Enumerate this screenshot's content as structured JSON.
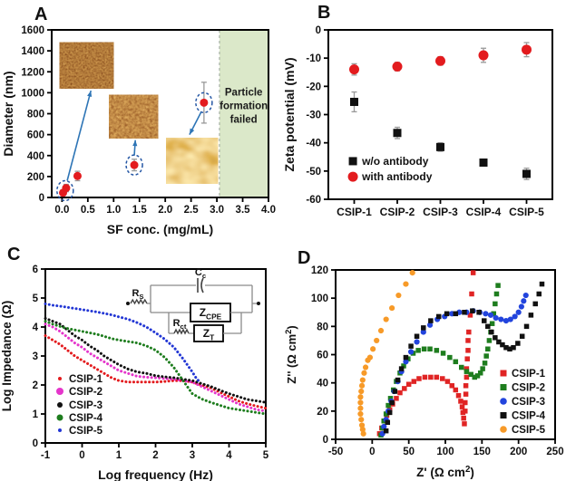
{
  "panels": {
    "A": "A",
    "B": "B",
    "C": "C",
    "D": "D"
  },
  "chart_data": [
    {
      "panel": "A",
      "type": "scatter",
      "xlabel": "SF conc. (mg/mL)",
      "ylabel": "Diameter (nm)",
      "xlim": [
        -0.2,
        4.0
      ],
      "ylim": [
        0,
        1600
      ],
      "xticks": [
        "0.0",
        "0.5",
        "1.0",
        "1.5",
        "2.0",
        "2.5",
        "3.0",
        "3.5",
        "4.0"
      ],
      "yticks": [
        0,
        200,
        400,
        600,
        800,
        1000,
        1200,
        1400,
        1600
      ],
      "marker_color": "#e31b1e",
      "errorbar_color": "#999999",
      "points": [
        {
          "x": 0.02,
          "y": 45,
          "err": 25
        },
        {
          "x": 0.08,
          "y": 90,
          "err": 35
        },
        {
          "x": 0.3,
          "y": 205,
          "err": 45
        },
        {
          "x": 1.4,
          "y": 310,
          "err": 55
        },
        {
          "x": 2.75,
          "y": 905,
          "err": 195
        }
      ],
      "highlight_circles": [
        {
          "x": 0.06,
          "y": 65
        },
        {
          "x": 1.4,
          "y": 310
        },
        {
          "x": 2.75,
          "y": 905
        }
      ],
      "highlight_color": "#2456a4",
      "arrow_color": "#2e75b6",
      "arrows": [
        {
          "x1": 0.1,
          "y1": 160,
          "x2": 0.56,
          "y2": 1020
        },
        {
          "x1": 1.4,
          "y1": 400,
          "x2": 1.42,
          "y2": 548
        },
        {
          "x1": 2.7,
          "y1": 820,
          "x2": 2.47,
          "y2": 600
        }
      ],
      "insets": [
        {
          "name": "afm-image-1",
          "x0": -0.05,
          "x1": 1.0,
          "y0": 1040,
          "y1": 1480,
          "filter": "afm1"
        },
        {
          "name": "afm-image-2",
          "x0": 0.91,
          "x1": 1.86,
          "y0": 565,
          "y1": 980,
          "filter": "afm2"
        },
        {
          "name": "afm-image-3",
          "x0": 2.02,
          "x1": 3.02,
          "y0": 130,
          "y1": 570,
          "filter": "afm3"
        }
      ],
      "failed_region": {
        "x_start": 3.05,
        "fill": "#dbe8c9",
        "line_color": "#9aa59a",
        "label": "Particle formation failed",
        "label_color": "#1a1a1a",
        "label_x": 3.52,
        "label_line_y": [
          975,
          845,
          715
        ]
      }
    },
    {
      "panel": "B",
      "type": "scatter",
      "ylabel": "Zeta potential (mV)",
      "categories": [
        "CSIP-1",
        "CSIP-2",
        "CSIP-3",
        "CSIP-4",
        "CSIP-5"
      ],
      "ylim": [
        -60,
        0
      ],
      "yticks": [
        0,
        -10,
        -20,
        -30,
        -40,
        -50,
        -60
      ],
      "errorbar_color": "#999999",
      "series": [
        {
          "name": "w/o antibody",
          "marker": "square",
          "color": "#111111",
          "values": [
            -25.5,
            -36.5,
            -41.5,
            -47,
            -51
          ],
          "errors": [
            3.5,
            2,
            1.5,
            1,
            2
          ]
        },
        {
          "name": "with antibody",
          "marker": "circle",
          "color": "#e31b1e",
          "values": [
            -14,
            -13,
            -11,
            -9,
            -7
          ],
          "errors": [
            2,
            1.5,
            1.5,
            2.5,
            2.5
          ]
        }
      ],
      "legend_position": "bottom-left"
    },
    {
      "panel": "C",
      "type": "line",
      "xlabel": "Log frequency (Hz)",
      "ylabel": "Log Impedance (Ω)",
      "xlim": [
        -1,
        5
      ],
      "ylim": [
        0,
        6
      ],
      "xticks": [
        -1,
        0,
        1,
        2,
        3,
        4,
        5
      ],
      "yticks": [
        0,
        1,
        2,
        3,
        4,
        5,
        6
      ],
      "x_common": [
        -1,
        -0.8,
        -0.6,
        -0.4,
        -0.2,
        0,
        0.2,
        0.4,
        0.6,
        0.8,
        1,
        1.25,
        1.5,
        1.75,
        2,
        2.25,
        2.5,
        2.75,
        3,
        3.25,
        3.5,
        3.75,
        4,
        4.25,
        4.5,
        4.75,
        5
      ],
      "series": [
        {
          "name": "CSIP-1",
          "color": "#e31b1e",
          "y": [
            3.7,
            3.55,
            3.4,
            3.2,
            3.0,
            2.85,
            2.7,
            2.55,
            2.4,
            2.25,
            2.15,
            2.1,
            2.1,
            2.1,
            2.1,
            2.12,
            2.15,
            2.15,
            2.1,
            2.0,
            1.9,
            1.75,
            1.6,
            1.45,
            1.35,
            1.27,
            1.2
          ]
        },
        {
          "name": "CSIP-2",
          "color": "#e535cb",
          "y": [
            4.1,
            4.0,
            3.85,
            3.65,
            3.45,
            3.3,
            3.1,
            2.95,
            2.8,
            2.65,
            2.5,
            2.4,
            2.3,
            2.27,
            2.25,
            2.22,
            2.2,
            2.15,
            2.1,
            1.95,
            1.8,
            1.65,
            1.5,
            1.35,
            1.25,
            1.15,
            1.1
          ]
        },
        {
          "name": "CSIP-3",
          "color": "#111111",
          "y": [
            4.3,
            4.2,
            4.1,
            3.9,
            3.7,
            3.55,
            3.35,
            3.2,
            3.0,
            2.85,
            2.7,
            2.55,
            2.45,
            2.4,
            2.32,
            2.28,
            2.25,
            2.2,
            2.15,
            2.05,
            1.95,
            1.82,
            1.7,
            1.6,
            1.5,
            1.45,
            1.4
          ]
        },
        {
          "name": "CSIP-4",
          "color": "#1e7d1e",
          "y": [
            4.2,
            4.1,
            4.02,
            3.95,
            3.9,
            3.85,
            3.8,
            3.75,
            3.68,
            3.6,
            3.55,
            3.5,
            3.45,
            3.35,
            3.2,
            2.95,
            2.6,
            2.15,
            1.7,
            1.52,
            1.4,
            1.3,
            1.2,
            1.15,
            1.1,
            1.05,
            1.0
          ]
        },
        {
          "name": "CSIP-5",
          "color": "#2236d4",
          "x": [
            -1,
            -0.8,
            -0.6,
            -0.4,
            -0.2,
            0,
            0.2,
            0.4,
            0.6,
            0.8,
            1,
            1.25,
            1.5,
            1.75,
            2,
            2.25,
            2.5,
            2.75,
            3,
            3.1,
            3.2
          ],
          "y": [
            4.8,
            4.75,
            4.72,
            4.68,
            4.64,
            4.6,
            4.56,
            4.52,
            4.47,
            4.42,
            4.35,
            4.27,
            4.15,
            4.0,
            3.8,
            3.58,
            3.3,
            2.9,
            2.45,
            2.25,
            2.1
          ]
        }
      ],
      "circuit": {
        "labels": {
          "cap": [
            "C",
            "c"
          ],
          "rs": [
            "R",
            "S"
          ],
          "zcpe": [
            "Z",
            "CPE"
          ],
          "rct": [
            "R",
            "ct"
          ],
          "zt": [
            "Z",
            "T"
          ]
        }
      }
    },
    {
      "panel": "D",
      "type": "scatter",
      "xlabel_parts": [
        "Z' (Ω cm",
        "2",
        ")"
      ],
      "ylabel_parts": [
        "Z'' (Ω cm",
        "2",
        ")"
      ],
      "xlim": [
        -50,
        250
      ],
      "ylim": [
        0,
        120
      ],
      "xticks": [
        -50,
        0,
        50,
        100,
        150,
        200,
        250
      ],
      "yticks": [
        0,
        20,
        40,
        60,
        80,
        100,
        120
      ],
      "series": [
        {
          "name": "CSIP-1",
          "marker": "square",
          "color": "#e02424",
          "points": [
            [
              10,
              4
            ],
            [
              13,
              8
            ],
            [
              16,
              13
            ],
            [
              20,
              17
            ],
            [
              24,
              21
            ],
            [
              28,
              25
            ],
            [
              33,
              29
            ],
            [
              38,
              33
            ],
            [
              44,
              36
            ],
            [
              50,
              39
            ],
            [
              57,
              41
            ],
            [
              64,
              43
            ],
            [
              72,
              44
            ],
            [
              80,
              44
            ],
            [
              88,
              44
            ],
            [
              96,
              43
            ],
            [
              103,
              41
            ],
            [
              109,
              38
            ],
            [
              114,
              35
            ],
            [
              118,
              31
            ],
            [
              121,
              27
            ],
            [
              123,
              23
            ],
            [
              124,
              19
            ],
            [
              125,
              15
            ],
            [
              126,
              11
            ],
            [
              127,
              20
            ],
            [
              127,
              26
            ],
            [
              128,
              32
            ],
            [
              128,
              38
            ],
            [
              129,
              44
            ],
            [
              129,
              50
            ],
            [
              130,
              57
            ],
            [
              131,
              63
            ],
            [
              131,
              70
            ],
            [
              132,
              76
            ],
            [
              134,
              88
            ],
            [
              136,
              103
            ],
            [
              138,
              118
            ]
          ]
        },
        {
          "name": "CSIP-2",
          "marker": "square",
          "color": "#1e7d1e",
          "points": [
            [
              12,
              3
            ],
            [
              14,
              8
            ],
            [
              16,
              13
            ],
            [
              19,
              18
            ],
            [
              22,
              24
            ],
            [
              25,
              29
            ],
            [
              29,
              35
            ],
            [
              33,
              41
            ],
            [
              38,
              47
            ],
            [
              43,
              52
            ],
            [
              49,
              57
            ],
            [
              56,
              61
            ],
            [
              63,
              63
            ],
            [
              71,
              64
            ],
            [
              79,
              64
            ],
            [
              88,
              63
            ],
            [
              97,
              61
            ],
            [
              106,
              58
            ],
            [
              114,
              55
            ],
            [
              122,
              51
            ],
            [
              129,
              48
            ],
            [
              135,
              46
            ],
            [
              140,
              44
            ],
            [
              144,
              45
            ],
            [
              148,
              47
            ],
            [
              151,
              50
            ],
            [
              154,
              54
            ],
            [
              156,
              59
            ],
            [
              158,
              64
            ],
            [
              160,
              70
            ],
            [
              162,
              76
            ],
            [
              164,
              82
            ],
            [
              166,
              89
            ],
            [
              168,
              96
            ],
            [
              170,
              103
            ],
            [
              172,
              109
            ]
          ]
        },
        {
          "name": "CSIP-3",
          "marker": "circle",
          "color": "#2244dd",
          "points": [
            [
              14,
              4
            ],
            [
              16,
              9
            ],
            [
              19,
              14
            ],
            [
              22,
              20
            ],
            [
              26,
              27
            ],
            [
              30,
              34
            ],
            [
              35,
              41
            ],
            [
              40,
              48
            ],
            [
              46,
              55
            ],
            [
              53,
              62
            ],
            [
              61,
              69
            ],
            [
              70,
              76
            ],
            [
              79,
              81
            ],
            [
              89,
              85
            ],
            [
              99,
              87
            ],
            [
              109,
              89
            ],
            [
              119,
              90
            ],
            [
              129,
              90
            ],
            [
              138,
              91
            ],
            [
              147,
              90
            ],
            [
              155,
              89
            ],
            [
              162,
              88
            ],
            [
              169,
              86
            ],
            [
              176,
              85
            ],
            [
              183,
              84
            ],
            [
              189,
              85
            ],
            [
              195,
              87
            ],
            [
              200,
              90
            ],
            [
              204,
              94
            ],
            [
              207,
              98
            ],
            [
              210,
              102
            ]
          ]
        },
        {
          "name": "CSIP-4",
          "marker": "square",
          "color": "#111111",
          "points": [
            [
              19,
              6
            ],
            [
              21,
              12
            ],
            [
              24,
              19
            ],
            [
              27,
              26
            ],
            [
              31,
              34
            ],
            [
              35,
              42
            ],
            [
              40,
              50
            ],
            [
              46,
              58
            ],
            [
              53,
              66
            ],
            [
              61,
              73
            ],
            [
              70,
              79
            ],
            [
              80,
              84
            ],
            [
              91,
              87
            ],
            [
              102,
              89
            ],
            [
              114,
              89
            ],
            [
              126,
              90
            ],
            [
              137,
              91
            ],
            [
              146,
              90
            ],
            [
              153,
              84
            ],
            [
              158,
              80
            ],
            [
              163,
              76
            ],
            [
              168,
              72
            ],
            [
              173,
              69
            ],
            [
              178,
              67
            ],
            [
              183,
              65
            ],
            [
              188,
              64
            ],
            [
              193,
              65
            ],
            [
              199,
              68
            ],
            [
              205,
              73
            ],
            [
              211,
              80
            ],
            [
              217,
              88
            ],
            [
              223,
              96
            ],
            [
              228,
              103
            ],
            [
              232,
              110
            ]
          ]
        },
        {
          "name": "CSIP-5",
          "marker": "circle",
          "color": "#f79a28",
          "points": [
            [
              -12,
              4
            ],
            [
              -13,
              7
            ],
            [
              -14,
              10
            ],
            [
              -15,
              14
            ],
            [
              -16,
              18
            ],
            [
              -16,
              22
            ],
            [
              -16,
              26
            ],
            [
              -16,
              30
            ],
            [
              -15,
              34
            ],
            [
              -14,
              38
            ],
            [
              -13,
              42
            ],
            [
              -11,
              47
            ],
            [
              -9,
              51
            ],
            [
              -6,
              56
            ],
            [
              -3,
              58
            ],
            [
              1,
              64
            ],
            [
              6,
              70
            ],
            [
              12,
              77
            ],
            [
              19,
              85
            ],
            [
              27,
              93
            ],
            [
              36,
              102
            ],
            [
              46,
              110
            ],
            [
              55,
              118
            ]
          ]
        }
      ],
      "legend_position": "right"
    }
  ]
}
